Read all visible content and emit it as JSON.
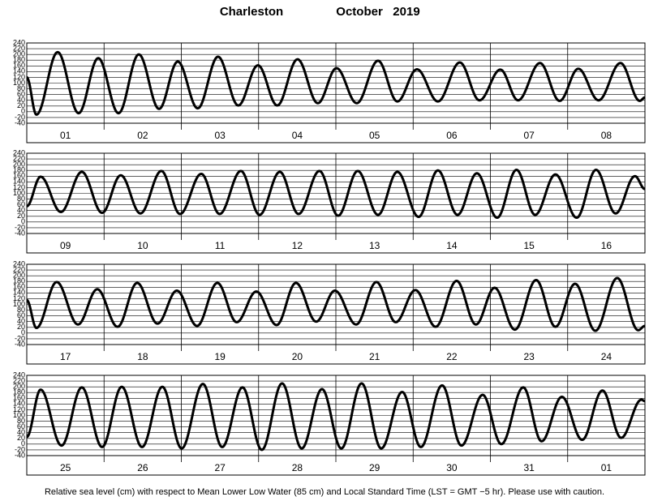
{
  "header": {
    "title": "Charleston",
    "date": "October   2019"
  },
  "footer": "Relative sea level (cm) with respect to Mean Lower Low Water (85 cm) and Local Standard Time (LST = GMT −5 hr). Please use with caution.",
  "chart_data": [
    {
      "type": "line",
      "categories": [
        "01",
        "02",
        "03",
        "04",
        "05",
        "06",
        "07",
        "08"
      ],
      "xlim": [
        0,
        192
      ],
      "ylim": [
        -40,
        240
      ],
      "yticks": [
        -40,
        -20,
        0,
        20,
        40,
        60,
        80,
        100,
        120,
        140,
        160,
        180,
        200,
        220,
        240
      ],
      "grid": true,
      "color": "#000000",
      "x": [
        0,
        3.0,
        9.6,
        16.1,
        22.2,
        28.5,
        34.8,
        41.1,
        46.9,
        53.1,
        59.4,
        65.7,
        71.8,
        77.8,
        84.1,
        90.4,
        96.2,
        102.5,
        109.1,
        115.1,
        121.2,
        127.7,
        134.5,
        140.6,
        147.1,
        152.6,
        159.4,
        165.5,
        171.3,
        177.6,
        184.4,
        190.4,
        192
      ],
      "values": [
        120,
        -10,
        208,
        -5,
        187,
        -5,
        200,
        10,
        175,
        12,
        192,
        22,
        162,
        22,
        183,
        30,
        152,
        30,
        178,
        36,
        148,
        36,
        172,
        40,
        147,
        40,
        170,
        38,
        150,
        40,
        170,
        38,
        50
      ]
    },
    {
      "type": "line",
      "categories": [
        "09",
        "10",
        "11",
        "12",
        "13",
        "14",
        "15",
        "16"
      ],
      "xlim": [
        0,
        192
      ],
      "ylim": [
        -40,
        240
      ],
      "yticks": [
        -40,
        -20,
        0,
        20,
        40,
        60,
        80,
        100,
        120,
        140,
        160,
        180,
        200,
        220,
        240
      ],
      "grid": true,
      "color": "#000000",
      "x": [
        0,
        4.3,
        10.6,
        17.1,
        23.4,
        29.2,
        35.3,
        41.8,
        47.6,
        54.2,
        59.9,
        66.5,
        72.3,
        78.6,
        84.4,
        90.9,
        96.7,
        102.8,
        109.1,
        115.1,
        121.7,
        127.7,
        133.8,
        139.8,
        146.1,
        152.1,
        157.9,
        164.2,
        170.8,
        176.8,
        182.9,
        188.9,
        192
      ],
      "values": [
        55,
        158,
        35,
        175,
        32,
        163,
        30,
        178,
        28,
        168,
        28,
        178,
        25,
        175,
        28,
        178,
        22,
        178,
        25,
        175,
        18,
        180,
        25,
        170,
        15,
        182,
        25,
        166,
        15,
        182,
        30,
        160,
        115
      ]
    },
    {
      "type": "line",
      "categories": [
        "17",
        "18",
        "19",
        "20",
        "21",
        "22",
        "23",
        "24"
      ],
      "xlim": [
        0,
        192
      ],
      "ylim": [
        -40,
        240
      ],
      "yticks": [
        -40,
        -20,
        0,
        20,
        40,
        60,
        80,
        100,
        120,
        140,
        160,
        180,
        200,
        220,
        240
      ],
      "grid": true,
      "color": "#000000",
      "x": [
        0,
        3.0,
        9.3,
        15.9,
        21.9,
        28.2,
        34.3,
        40.6,
        46.6,
        52.9,
        59.2,
        65.2,
        71.3,
        77.6,
        83.6,
        89.9,
        95.7,
        102.3,
        108.6,
        114.6,
        120.7,
        127.0,
        133.5,
        139.5,
        145.3,
        151.6,
        158.2,
        164.2,
        170.3,
        176.6,
        183.4,
        189.9,
        192
      ],
      "values": [
        115,
        18,
        178,
        30,
        153,
        22,
        175,
        33,
        148,
        25,
        175,
        38,
        145,
        28,
        175,
        40,
        148,
        30,
        178,
        38,
        150,
        22,
        182,
        30,
        158,
        12,
        185,
        22,
        172,
        8,
        192,
        10,
        25
      ]
    },
    {
      "type": "line",
      "categories": [
        "25",
        "26",
        "27",
        "28",
        "29",
        "30",
        "31",
        "01"
      ],
      "xlim": [
        0,
        192
      ],
      "ylim": [
        -40,
        240
      ],
      "yticks": [
        -40,
        -20,
        0,
        20,
        40,
        60,
        80,
        100,
        120,
        140,
        160,
        180,
        200,
        220,
        240
      ],
      "grid": true,
      "color": "#000000",
      "x": [
        0,
        4.3,
        10.8,
        17.1,
        23.4,
        29.5,
        35.8,
        42.1,
        48.1,
        54.7,
        60.7,
        67.0,
        73.0,
        79.3,
        85.4,
        91.7,
        97.7,
        104.0,
        110.1,
        116.6,
        122.4,
        129.0,
        135.0,
        141.6,
        147.4,
        154.2,
        159.9,
        166.2,
        172.5,
        178.8,
        184.6,
        190.9,
        192
      ],
      "values": [
        25,
        190,
        -5,
        198,
        -10,
        200,
        -10,
        200,
        -15,
        210,
        -10,
        198,
        -20,
        212,
        -15,
        192,
        -15,
        212,
        -15,
        182,
        -10,
        205,
        -5,
        172,
        0,
        198,
        10,
        165,
        15,
        187,
        22,
        155,
        150
      ]
    }
  ]
}
